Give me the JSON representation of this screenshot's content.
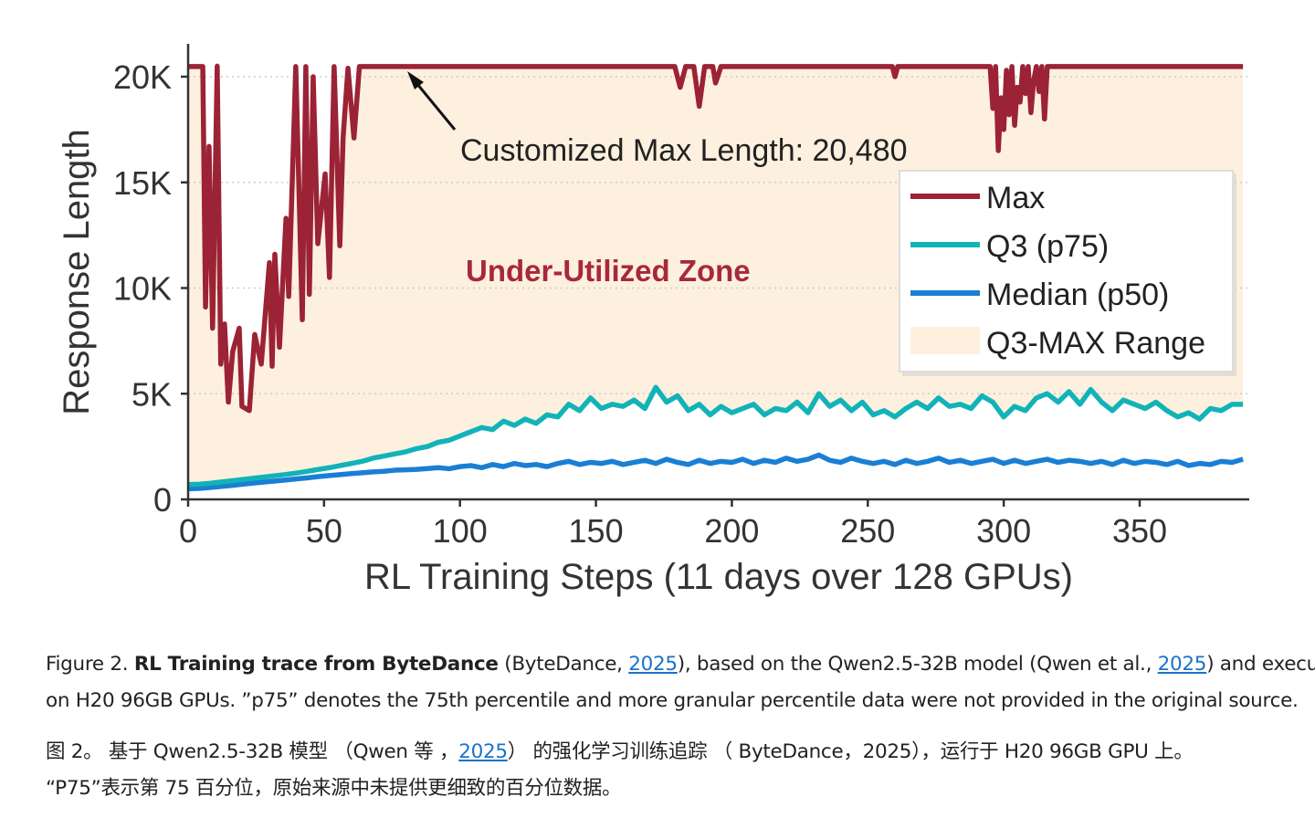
{
  "chart_data": {
    "type": "line",
    "xlabel": "RL Training Steps (11 days over 128 GPUs)",
    "ylabel": "Response Length",
    "xlim": [
      0,
      390
    ],
    "ylim": [
      0,
      21500
    ],
    "x_ticks": [
      0,
      50,
      100,
      150,
      200,
      250,
      300,
      350
    ],
    "x_tick_labels": [
      "0",
      "50",
      "100",
      "150",
      "200",
      "250",
      "300",
      "350"
    ],
    "y_ticks": [
      0,
      5000,
      10000,
      15000,
      20000
    ],
    "y_tick_labels": [
      "0",
      "5K",
      "10K",
      "15K",
      "20K"
    ],
    "grid": "horizontal dotted",
    "legend_position": "right",
    "annotations": {
      "max_length": "Customized Max Length: 20,480",
      "zone": "Under-Utilized Zone"
    },
    "colors": {
      "max": "#9b2335",
      "q3": "#12b3b8",
      "median": "#1a7fd4",
      "range": "#fdf0de",
      "zone_text": "#a8283a"
    },
    "legend": [
      "Max",
      "Q3 (p75)",
      "Median (p50)",
      "Q3-MAX Range"
    ],
    "series": [
      {
        "name": "Max",
        "points": [
          [
            0,
            20480
          ],
          [
            5.4,
            20480
          ],
          [
            6.4,
            9100
          ],
          [
            7.7,
            16700
          ],
          [
            9,
            8100
          ],
          [
            10.7,
            20500
          ],
          [
            12,
            6400
          ],
          [
            13.4,
            8300
          ],
          [
            14.8,
            4600
          ],
          [
            16.4,
            7000
          ],
          [
            18.8,
            8100
          ],
          [
            19.8,
            4400
          ],
          [
            22.5,
            4200
          ],
          [
            24.5,
            7800
          ],
          [
            26.9,
            6400
          ],
          [
            29.9,
            11200
          ],
          [
            30.9,
            6300
          ],
          [
            31.9,
            11600
          ],
          [
            33.6,
            7200
          ],
          [
            36,
            13300
          ],
          [
            37,
            9600
          ],
          [
            39.6,
            20480
          ],
          [
            42,
            8500
          ],
          [
            43.3,
            20480
          ],
          [
            44.6,
            9700
          ],
          [
            46,
            20000
          ],
          [
            47.7,
            12100
          ],
          [
            50.4,
            15400
          ],
          [
            52,
            10500
          ],
          [
            53.7,
            20480
          ],
          [
            55.8,
            12000
          ],
          [
            57,
            17100
          ],
          [
            58.8,
            20400
          ],
          [
            61,
            17100
          ],
          [
            63,
            20480
          ],
          [
            179,
            20480
          ],
          [
            181,
            19500
          ],
          [
            183,
            20480
          ],
          [
            186,
            20480
          ],
          [
            188,
            18600
          ],
          [
            190,
            20480
          ],
          [
            193,
            20480
          ],
          [
            194,
            19700
          ],
          [
            196,
            20480
          ],
          [
            259,
            20480
          ],
          [
            260,
            20000
          ],
          [
            261,
            20480
          ],
          [
            295,
            20480
          ],
          [
            296,
            18500
          ],
          [
            297,
            20480
          ],
          [
            298,
            16500
          ],
          [
            299,
            19000
          ],
          [
            300,
            17500
          ],
          [
            301,
            20300
          ],
          [
            302,
            18200
          ],
          [
            303,
            20480
          ],
          [
            304,
            17700
          ],
          [
            305,
            19500
          ],
          [
            306,
            18800
          ],
          [
            307,
            20480
          ],
          [
            308,
            19200
          ],
          [
            309,
            20480
          ],
          [
            310,
            18300
          ],
          [
            311,
            19800
          ],
          [
            312,
            20480
          ],
          [
            313,
            19300
          ],
          [
            314,
            20480
          ],
          [
            315,
            18000
          ],
          [
            316,
            20480
          ],
          [
            388,
            20480
          ]
        ]
      },
      {
        "name": "Q3 (p75)",
        "points": [
          [
            0,
            700
          ],
          [
            4,
            720
          ],
          [
            8,
            760
          ],
          [
            12,
            820
          ],
          [
            16,
            880
          ],
          [
            20,
            940
          ],
          [
            24,
            1000
          ],
          [
            28,
            1060
          ],
          [
            32,
            1120
          ],
          [
            36,
            1180
          ],
          [
            40,
            1250
          ],
          [
            44,
            1330
          ],
          [
            48,
            1420
          ],
          [
            52,
            1500
          ],
          [
            56,
            1600
          ],
          [
            60,
            1700
          ],
          [
            64,
            1800
          ],
          [
            68,
            1950
          ],
          [
            72,
            2050
          ],
          [
            76,
            2150
          ],
          [
            80,
            2250
          ],
          [
            84,
            2400
          ],
          [
            88,
            2500
          ],
          [
            92,
            2700
          ],
          [
            96,
            2800
          ],
          [
            100,
            3000
          ],
          [
            104,
            3200
          ],
          [
            108,
            3400
          ],
          [
            112,
            3300
          ],
          [
            116,
            3700
          ],
          [
            120,
            3500
          ],
          [
            124,
            3800
          ],
          [
            128,
            3600
          ],
          [
            132,
            4000
          ],
          [
            136,
            3900
          ],
          [
            140,
            4500
          ],
          [
            144,
            4200
          ],
          [
            148,
            4800
          ],
          [
            152,
            4300
          ],
          [
            156,
            4500
          ],
          [
            160,
            4400
          ],
          [
            164,
            4700
          ],
          [
            168,
            4300
          ],
          [
            172,
            5300
          ],
          [
            176,
            4600
          ],
          [
            180,
            4900
          ],
          [
            184,
            4200
          ],
          [
            188,
            4500
          ],
          [
            192,
            4000
          ],
          [
            196,
            4400
          ],
          [
            200,
            4100
          ],
          [
            204,
            4300
          ],
          [
            208,
            4500
          ],
          [
            212,
            4000
          ],
          [
            216,
            4300
          ],
          [
            220,
            4200
          ],
          [
            224,
            4600
          ],
          [
            228,
            4100
          ],
          [
            232,
            5000
          ],
          [
            236,
            4400
          ],
          [
            240,
            4700
          ],
          [
            244,
            4200
          ],
          [
            248,
            4600
          ],
          [
            252,
            4000
          ],
          [
            256,
            4200
          ],
          [
            260,
            3900
          ],
          [
            264,
            4300
          ],
          [
            268,
            4600
          ],
          [
            272,
            4300
          ],
          [
            276,
            4800
          ],
          [
            280,
            4400
          ],
          [
            284,
            4500
          ],
          [
            288,
            4300
          ],
          [
            292,
            4900
          ],
          [
            296,
            4600
          ],
          [
            300,
            3900
          ],
          [
            304,
            4400
          ],
          [
            308,
            4200
          ],
          [
            312,
            4800
          ],
          [
            316,
            5000
          ],
          [
            320,
            4600
          ],
          [
            324,
            5100
          ],
          [
            328,
            4500
          ],
          [
            332,
            5200
          ],
          [
            336,
            4600
          ],
          [
            340,
            4200
          ],
          [
            344,
            4700
          ],
          [
            348,
            4500
          ],
          [
            352,
            4300
          ],
          [
            356,
            4600
          ],
          [
            360,
            4200
          ],
          [
            364,
            3900
          ],
          [
            368,
            4100
          ],
          [
            372,
            3800
          ],
          [
            376,
            4300
          ],
          [
            380,
            4200
          ],
          [
            384,
            4500
          ],
          [
            388,
            4500
          ]
        ]
      },
      {
        "name": "Median (p50)",
        "points": [
          [
            0,
            500
          ],
          [
            4,
            520
          ],
          [
            8,
            560
          ],
          [
            12,
            610
          ],
          [
            16,
            660
          ],
          [
            20,
            720
          ],
          [
            24,
            770
          ],
          [
            28,
            820
          ],
          [
            32,
            870
          ],
          [
            36,
            920
          ],
          [
            40,
            970
          ],
          [
            44,
            1020
          ],
          [
            48,
            1080
          ],
          [
            52,
            1130
          ],
          [
            56,
            1170
          ],
          [
            60,
            1220
          ],
          [
            64,
            1260
          ],
          [
            68,
            1300
          ],
          [
            72,
            1330
          ],
          [
            76,
            1380
          ],
          [
            80,
            1400
          ],
          [
            84,
            1420
          ],
          [
            88,
            1460
          ],
          [
            92,
            1500
          ],
          [
            96,
            1450
          ],
          [
            100,
            1550
          ],
          [
            104,
            1600
          ],
          [
            108,
            1500
          ],
          [
            112,
            1650
          ],
          [
            116,
            1550
          ],
          [
            120,
            1700
          ],
          [
            124,
            1600
          ],
          [
            128,
            1650
          ],
          [
            132,
            1550
          ],
          [
            136,
            1700
          ],
          [
            140,
            1800
          ],
          [
            144,
            1650
          ],
          [
            148,
            1750
          ],
          [
            152,
            1700
          ],
          [
            156,
            1800
          ],
          [
            160,
            1650
          ],
          [
            164,
            1750
          ],
          [
            168,
            1850
          ],
          [
            172,
            1700
          ],
          [
            176,
            1900
          ],
          [
            180,
            1750
          ],
          [
            184,
            1650
          ],
          [
            188,
            1850
          ],
          [
            192,
            1700
          ],
          [
            196,
            1800
          ],
          [
            200,
            1750
          ],
          [
            204,
            1900
          ],
          [
            208,
            1700
          ],
          [
            212,
            1850
          ],
          [
            216,
            1750
          ],
          [
            220,
            1950
          ],
          [
            224,
            1800
          ],
          [
            228,
            1900
          ],
          [
            232,
            2100
          ],
          [
            236,
            1850
          ],
          [
            240,
            1750
          ],
          [
            244,
            1950
          ],
          [
            248,
            1800
          ],
          [
            252,
            1700
          ],
          [
            256,
            1800
          ],
          [
            260,
            1650
          ],
          [
            264,
            1850
          ],
          [
            268,
            1700
          ],
          [
            272,
            1800
          ],
          [
            276,
            1950
          ],
          [
            280,
            1750
          ],
          [
            284,
            1850
          ],
          [
            288,
            1700
          ],
          [
            292,
            1800
          ],
          [
            296,
            1900
          ],
          [
            300,
            1700
          ],
          [
            304,
            1850
          ],
          [
            308,
            1700
          ],
          [
            312,
            1800
          ],
          [
            316,
            1900
          ],
          [
            320,
            1750
          ],
          [
            324,
            1850
          ],
          [
            328,
            1800
          ],
          [
            332,
            1700
          ],
          [
            336,
            1800
          ],
          [
            340,
            1650
          ],
          [
            344,
            1850
          ],
          [
            348,
            1700
          ],
          [
            352,
            1800
          ],
          [
            356,
            1750
          ],
          [
            360,
            1650
          ],
          [
            364,
            1800
          ],
          [
            368,
            1600
          ],
          [
            372,
            1700
          ],
          [
            376,
            1650
          ],
          [
            380,
            1800
          ],
          [
            384,
            1750
          ],
          [
            388,
            1900
          ]
        ]
      }
    ]
  },
  "caption": {
    "en_label": "Figure 2.",
    "en_bold": "RL Training trace from ByteDance",
    "en_p1": " (ByteDance, ",
    "en_link1": "2025",
    "en_p2": "), based on the Qwen2.5-32B model  (Qwen et al., ",
    "en_link2": "2025",
    "en_p3": ") and executed",
    "en_line2": "on H20 96GB GPUs. ”p75” denotes the 75th percentile and more granular percentile data were not provided in the original source.",
    "zh_p1": "图 2。 基于 Qwen2.5-32B 模型 （Qwen 等 ，",
    "zh_link": "2025",
    "zh_p2": "） 的强化学习训练追踪 （ ByteDance，2025），运行于 H20 96GB GPU 上。",
    "zh_line2": "“P75”表示第 75 百分位，原始来源中未提供更细致的百分位数据。"
  }
}
